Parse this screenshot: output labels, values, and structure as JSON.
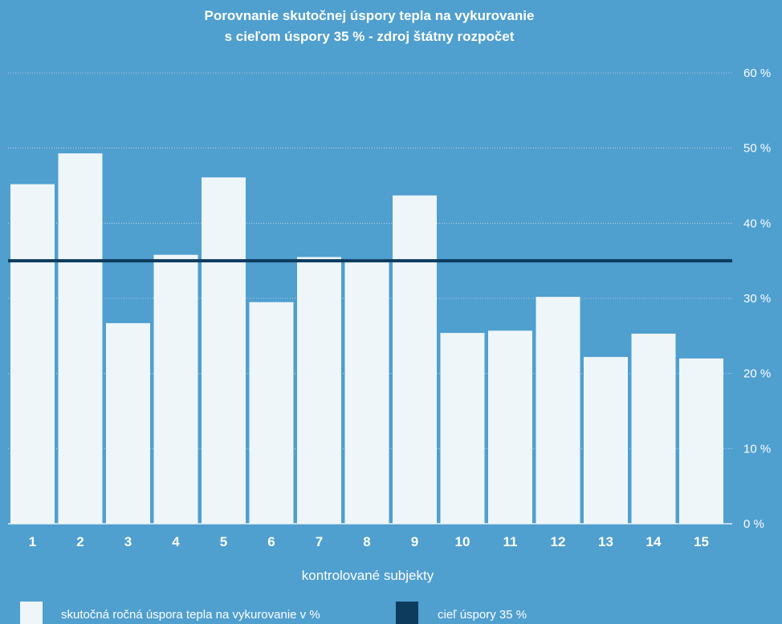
{
  "chart_data": {
    "type": "bar",
    "title_lines": [
      "Porovnanie skutočnej úspory tepla na vykurovanie",
      "s cieľom úspory 35 %  - zdroj štátny rozpočet"
    ],
    "xlabel": "kontrolované subjekty",
    "ylabel": "",
    "categories": [
      "1",
      "2",
      "3",
      "4",
      "5",
      "6",
      "7",
      "8",
      "9",
      "10",
      "11",
      "12",
      "13",
      "14",
      "15"
    ],
    "series": [
      {
        "name": "skutočná ročná úspora tepla na vykurovanie v %",
        "values": [
          45.2,
          49.3,
          26.7,
          35.8,
          46.1,
          29.5,
          35.5,
          35.2,
          43.7,
          25.4,
          25.7,
          30.2,
          22.2,
          25.3,
          22.0
        ]
      }
    ],
    "target_line": {
      "name": "cieľ úspory 35 %",
      "value": 35
    },
    "ylim": [
      0,
      60
    ],
    "y_ticks": [
      0,
      10,
      20,
      30,
      40,
      50,
      60
    ],
    "y_tick_labels": [
      "0 %",
      "10 %",
      "20 %",
      "30 %",
      "40 %",
      "50 %",
      "60 %"
    ],
    "grid": true,
    "legend_position": "bottom-left",
    "colors": {
      "background": "#4f9fcf",
      "bar": "#eef6f9",
      "target_line": "#0d3b5e",
      "grid": "#cfe4f2",
      "text": "#ffffff"
    }
  }
}
